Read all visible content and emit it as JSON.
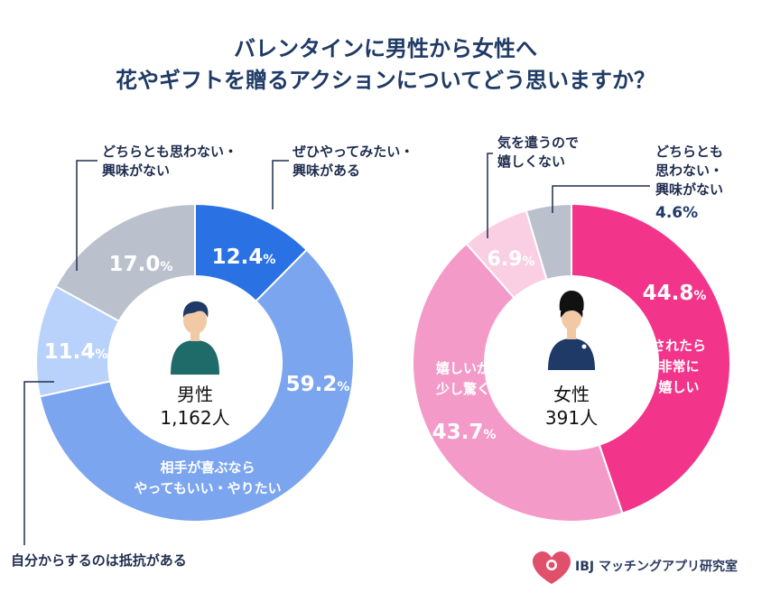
{
  "title": {
    "line1": "バレンタインに男性から女性へ",
    "line2": "花やギフトを贈るアクションについてどう思いますか？"
  },
  "colors": {
    "title": "#1f3a66",
    "men": [
      "#2a72e3",
      "#7ba5ef",
      "#b9d2fb",
      "#bac1cd"
    ],
    "women": [
      "#f2358a",
      "#f49ac8",
      "#fbcfe3",
      "#bac1cd"
    ]
  },
  "chart_data": [
    {
      "type": "pie",
      "name": "男性",
      "count": "1,162人",
      "categories": [
        "ぜひやってみたい・興味がある",
        "相手が喜ぶならやってもいい・やりたい",
        "自分からするのは抵抗がある",
        "どちらとも思わない・興味がない"
      ],
      "values": [
        12.4,
        59.2,
        11.4,
        17.0
      ],
      "labels": {
        "c0_l1": "ぜひやってみたい・",
        "c0_l2": "興味がある",
        "c1_l1": "相手が喜ぶなら",
        "c1_l2": "やってもいい・やりたい",
        "c2_l1": "自分からするのは抵抗がある",
        "c3_l1": "どちらとも思わない・",
        "c3_l2": "興味がない"
      },
      "pct_labels": [
        "12.4",
        "59.2",
        "11.4",
        "17.0"
      ]
    },
    {
      "type": "pie",
      "name": "女性",
      "count": "391人",
      "categories": [
        "されたら非常に嬉しい",
        "嬉しいが少し驚く",
        "気を遣うので嬉しくない",
        "どちらとも思わない・興味がない"
      ],
      "values": [
        44.8,
        43.7,
        6.9,
        4.6
      ],
      "labels": {
        "c0_l1": "されたら",
        "c0_l2": "非常に",
        "c0_l3": "嬉しい",
        "c1_l1": "嬉しいが",
        "c1_l2": "少し驚く",
        "c2_l1": "気を遣うので",
        "c2_l2": "嬉しくない",
        "c3_l1": "どちらとも",
        "c3_l2": "思わない・",
        "c3_l3": "興味がない"
      },
      "pct_labels": [
        "44.8",
        "43.7",
        "6.9",
        "4.6"
      ]
    }
  ],
  "percent_sign": "%",
  "brand": {
    "text": "IBJ マッチングアプリ研究室"
  }
}
